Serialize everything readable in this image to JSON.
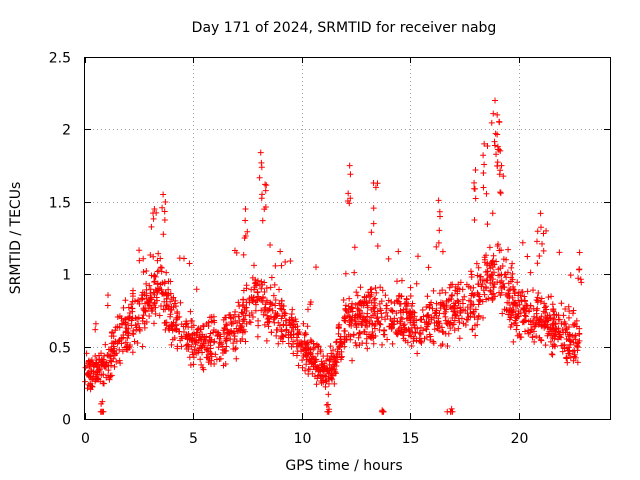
{
  "chart_data": {
    "type": "scatter",
    "title": "Day 171 of 2024, SRMTID for receiver nabg",
    "xlabel": "GPS time / hours",
    "ylabel": "SRMTID / TECUs",
    "xlim": [
      0,
      24.2
    ],
    "ylim": [
      0,
      2.5
    ],
    "xticks": [
      0,
      5,
      10,
      15,
      20
    ],
    "yticks": [
      0,
      0.5,
      1,
      1.5,
      2,
      2.5
    ],
    "ytick_labels": [
      "0",
      "0.5",
      "1",
      "1.5",
      "2",
      "2.5"
    ],
    "grid": true,
    "marker": "+",
    "color": "#ff0000",
    "series": [
      {
        "name": "SRMTID",
        "trend": [
          [
            0.0,
            0.33
          ],
          [
            0.5,
            0.32
          ],
          [
            1.0,
            0.35
          ],
          [
            1.5,
            0.55
          ],
          [
            2.0,
            0.62
          ],
          [
            2.5,
            0.7
          ],
          [
            3.0,
            0.8
          ],
          [
            3.5,
            0.95
          ],
          [
            4.0,
            0.72
          ],
          [
            4.5,
            0.6
          ],
          [
            5.0,
            0.55
          ],
          [
            5.5,
            0.52
          ],
          [
            6.0,
            0.55
          ],
          [
            6.5,
            0.55
          ],
          [
            7.0,
            0.6
          ],
          [
            7.5,
            0.75
          ],
          [
            8.0,
            0.85
          ],
          [
            8.5,
            0.75
          ],
          [
            9.0,
            0.7
          ],
          [
            9.5,
            0.62
          ],
          [
            10.0,
            0.5
          ],
          [
            10.5,
            0.42
          ],
          [
            11.0,
            0.33
          ],
          [
            11.5,
            0.35
          ],
          [
            12.0,
            0.65
          ],
          [
            12.5,
            0.7
          ],
          [
            13.0,
            0.72
          ],
          [
            13.5,
            0.7
          ],
          [
            14.0,
            0.68
          ],
          [
            14.5,
            0.7
          ],
          [
            15.0,
            0.68
          ],
          [
            15.5,
            0.65
          ],
          [
            16.0,
            0.68
          ],
          [
            16.5,
            0.72
          ],
          [
            17.0,
            0.75
          ],
          [
            17.5,
            0.78
          ],
          [
            18.0,
            0.85
          ],
          [
            18.5,
            0.95
          ],
          [
            19.0,
            1.05
          ],
          [
            19.5,
            0.85
          ],
          [
            20.0,
            0.75
          ],
          [
            20.5,
            0.72
          ],
          [
            21.0,
            0.7
          ],
          [
            21.5,
            0.65
          ],
          [
            22.0,
            0.6
          ],
          [
            22.5,
            0.52
          ],
          [
            22.8,
            0.55
          ]
        ],
        "peaks": [
          [
            3.2,
            1.45
          ],
          [
            3.6,
            1.55
          ],
          [
            7.4,
            1.45
          ],
          [
            8.1,
            1.84
          ],
          [
            8.3,
            1.62
          ],
          [
            12.2,
            1.75
          ],
          [
            13.3,
            1.63
          ],
          [
            16.3,
            1.51
          ],
          [
            18.0,
            1.72
          ],
          [
            18.4,
            1.9
          ],
          [
            18.9,
            2.2
          ],
          [
            19.0,
            2.1
          ],
          [
            19.1,
            2.05
          ],
          [
            19.2,
            1.75
          ],
          [
            21.0,
            1.42
          ],
          [
            22.8,
            1.15
          ],
          [
            13.7,
            0.06
          ],
          [
            16.9,
            0.07
          ],
          [
            11.2,
            0.1
          ],
          [
            0.8,
            0.12
          ]
        ]
      }
    ]
  }
}
